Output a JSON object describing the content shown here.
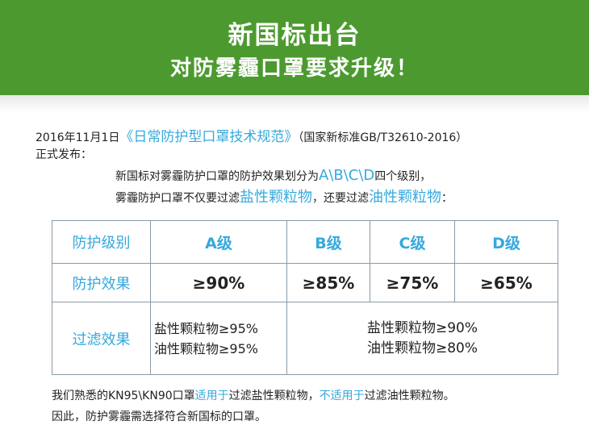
{
  "banner": {
    "line1": "新国标出台",
    "line2": "对防雾霾口罩要求升级！"
  },
  "intro": {
    "date": "2016年11月1日",
    "book": "《日常防护型口罩技术规范》",
    "std": "（国家新标准GB/T32610-2016）",
    "issued": "正式发布："
  },
  "desc": {
    "l1a": "新国标对雾霾防护口罩的防护效果划分为",
    "grades": "A\\B\\C\\D",
    "l1b": "四个级别，",
    "l2a": "雾霾防护口罩不仅要过滤",
    "salt": "盐性颗粒物",
    "l2b": "，还要过滤",
    "oil": "油性颗粒物",
    "l2c": "："
  },
  "table": {
    "row1_label": "防护级别",
    "grades": [
      "A级",
      "B级",
      "C级",
      "D级"
    ],
    "row2_label": "防护效果",
    "effects": [
      "≥90%",
      "≥85%",
      "≥75%",
      "≥65%"
    ],
    "row3_label": "过滤效果",
    "filter_a_salt": "盐性颗粒物≥95%",
    "filter_a_oil": "油性颗粒物≥95%",
    "filter_bcd_salt": "盐性颗粒物≥90%",
    "filter_bcd_oil": "油性颗粒物≥80%"
  },
  "note": {
    "l1a": "我们熟悉的KN95\\KN90口罩",
    "suit": "适用于",
    "l1b": "过滤盐性颗粒物，",
    "unsuit": "不适用于",
    "l1c": "过滤油性颗粒物。",
    "l2": "因此，防护雾霾需选择符合新国标的口罩。"
  },
  "colors": {
    "banner": "#4c9a2f",
    "accent": "#35a9dd",
    "border": "#8a9aa6"
  }
}
